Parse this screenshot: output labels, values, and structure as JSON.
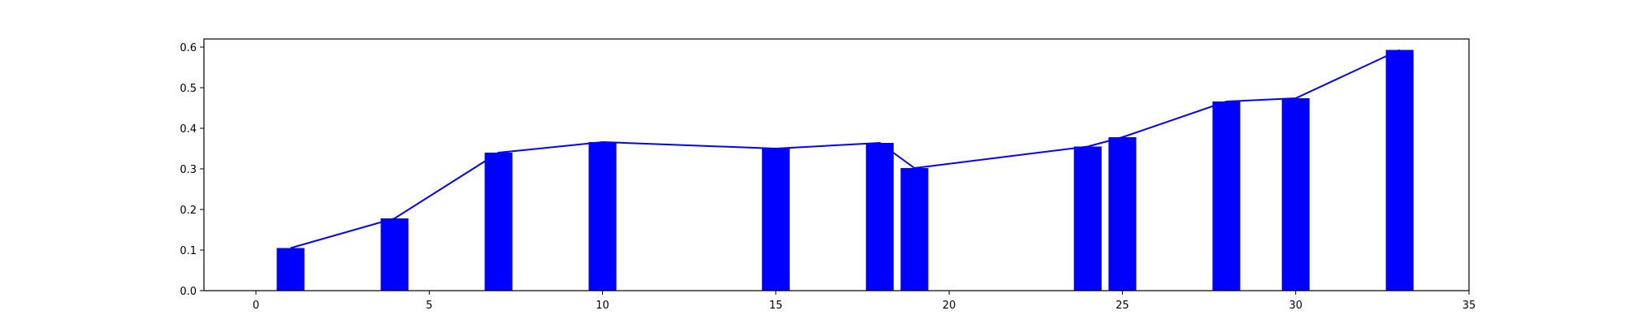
{
  "chart_data": {
    "type": "bar",
    "title": "",
    "xlabel": "",
    "ylabel": "",
    "xlim": [
      -1.5,
      35
    ],
    "ylim": [
      0,
      0.62
    ],
    "grid": false,
    "legend": "none",
    "bar_color": "#0000ff",
    "line_color": "#0000ff",
    "bar_width": 0.8,
    "x": [
      1,
      4,
      7,
      10,
      15,
      18,
      19,
      24,
      25,
      28,
      30,
      33
    ],
    "values": [
      0.105,
      0.178,
      0.34,
      0.366,
      0.35,
      0.364,
      0.302,
      0.355,
      0.378,
      0.466,
      0.474,
      0.593
    ],
    "xticks": [
      0,
      5,
      10,
      15,
      20,
      25,
      30,
      35
    ],
    "xtick_labels": [
      "0",
      "5",
      "10",
      "15",
      "20",
      "25",
      "30",
      "35"
    ],
    "yticks": [
      0.0,
      0.1,
      0.2,
      0.3,
      0.4,
      0.5,
      0.6
    ],
    "ytick_labels": [
      "0.0",
      "0.1",
      "0.2",
      "0.3",
      "0.4",
      "0.5",
      "0.6"
    ]
  }
}
